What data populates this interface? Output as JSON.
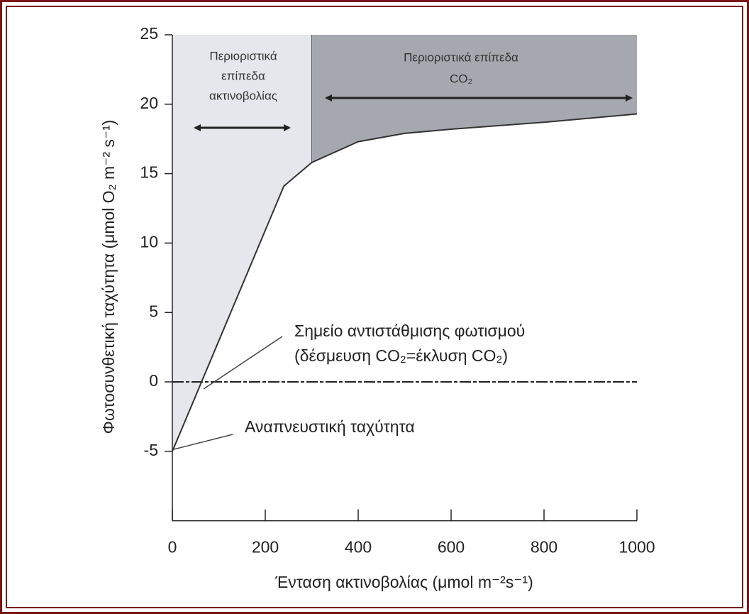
{
  "chart_data": {
    "type": "line",
    "x": [
      0,
      240,
      300,
      400,
      500,
      600,
      800,
      1000
    ],
    "values": [
      -5,
      14.1,
      15.8,
      17.3,
      17.9,
      18.2,
      18.7,
      19.3
    ],
    "color": "#333333",
    "xlim": [
      0,
      1000
    ],
    "xticks": [
      0,
      200,
      400,
      600,
      800,
      1000
    ],
    "ylim": [
      -10,
      25
    ],
    "yticks": [
      -5,
      0,
      5,
      10,
      15,
      20,
      25
    ],
    "xlabel": "Ένταση ακτινοβολίας (μmol m⁻²s⁻¹)",
    "ylabel": "Φωτοσυνθετική ταχύτητα (μmol O₂ m⁻² s⁻¹)",
    "reference_line": 0,
    "region_boundary": 300,
    "regions": [
      {
        "lines": [
          "Περιοριστικά",
          "επίπεδα",
          "ακτινοβολίας"
        ],
        "color": "#e6e7ec"
      },
      {
        "lines": [
          "Περιοριστικά επίπεδα",
          "CO₂"
        ],
        "color": "#a5a8ae"
      }
    ],
    "annotations": [
      {
        "lines": [
          "Σημείο αντιστάθμισης φωτισμού",
          "(δέσμευση CO₂=έκλυση CO₂)"
        ]
      },
      {
        "lines": [
          "Αναπνευστική ταχύτητα"
        ]
      }
    ]
  }
}
